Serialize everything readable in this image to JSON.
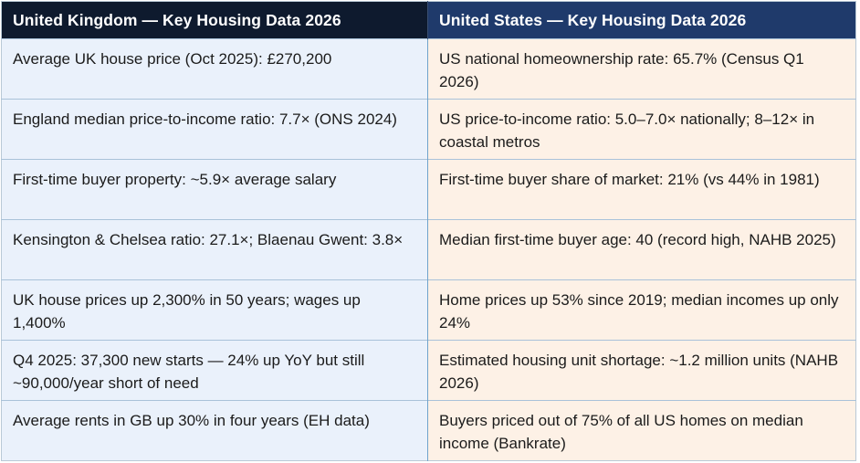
{
  "table": {
    "headers": {
      "uk": "United Kingdom — Key Housing Data 2026",
      "us": "United States — Key Housing Data 2026"
    },
    "rows": [
      {
        "uk": "Average UK house price (Oct 2025): £270,200",
        "us": "US national homeownership rate: 65.7% (Census Q1 2026)"
      },
      {
        "uk": "England median price-to-income ratio: 7.7× (ONS 2024)",
        "us": "US price-to-income ratio: 5.0–7.0× nationally; 8–12× in coastal metros"
      },
      {
        "uk": "First-time buyer property: ~5.9× average salary",
        "us": "First-time buyer share of market: 21% (vs 44% in 1981)"
      },
      {
        "uk": "Kensington & Chelsea ratio: 27.1×; Blaenau Gwent: 3.8×",
        "us": "Median first-time buyer age: 40 (record high, NAHB 2025)"
      },
      {
        "uk": "UK house prices up 2,300% in 50 years; wages up 1,400%",
        "us": "Home prices up 53% since 2019; median incomes up only 24%"
      },
      {
        "uk": "Q4 2025: 37,300 new starts — 24% up YoY but still ~90,000/year short of need",
        "us": "Estimated housing unit shortage: ~1.2 million units (NAHB 2026)"
      },
      {
        "uk": "Average rents in GB up 30% in four years (EH data)",
        "us": "Buyers priced out of 75% of all US homes on median income (Bankrate)"
      }
    ]
  }
}
